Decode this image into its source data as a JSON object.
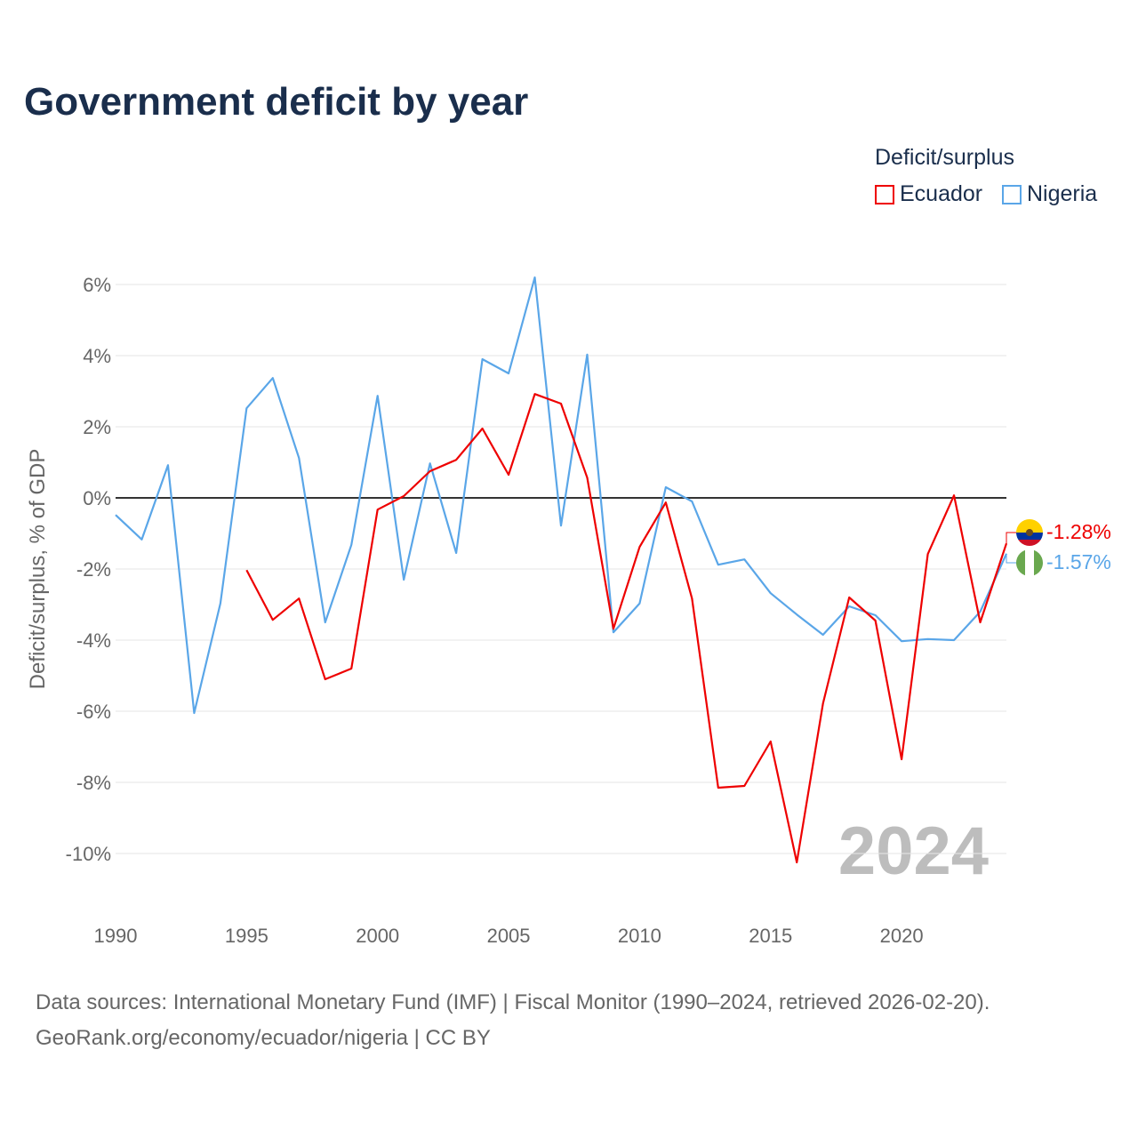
{
  "title": "Government deficit by year",
  "legend": {
    "title": "Deficit/surplus",
    "entries": [
      {
        "name": "Ecuador",
        "color": "#ee0000"
      },
      {
        "name": "Nigeria",
        "color": "#5aa6e8"
      }
    ]
  },
  "watermark_year": "2024",
  "end_labels": {
    "ecuador": "-1.28%",
    "nigeria": "-1.57%"
  },
  "footer": {
    "line1": "Data sources: International Monetary Fund (IMF) | Fiscal Monitor (1990–2024, retrieved 2026-02-20).",
    "line2": "GeoRank.org/economy/ecuador/nigeria | CC BY"
  },
  "chart_data": {
    "type": "line",
    "title": "Government deficit by year",
    "ylabel": "Deficit/surplus, % of GDP",
    "xlabel": "",
    "xlim": [
      1990,
      2024
    ],
    "ylim": [
      -11,
      7
    ],
    "xticks": [
      1990,
      1995,
      2000,
      2005,
      2010,
      2015,
      2020
    ],
    "yticks": [
      6,
      4,
      2,
      0,
      -2,
      -4,
      -6,
      -8,
      -10
    ],
    "ytick_labels": [
      "6%",
      "4%",
      "2%",
      "0%",
      "-2%",
      "-4%",
      "-6%",
      "-8%",
      "-10%"
    ],
    "grid": true,
    "legend_position": "top-right",
    "series": [
      {
        "name": "Ecuador",
        "color": "#ee0000",
        "x": [
          1995,
          1996,
          1997,
          1998,
          1999,
          2000,
          2001,
          2002,
          2003,
          2004,
          2005,
          2006,
          2007,
          2008,
          2009,
          2010,
          2011,
          2012,
          2013,
          2014,
          2015,
          2016,
          2017,
          2018,
          2019,
          2020,
          2021,
          2022,
          2023,
          2024
        ],
        "values": [
          -2.03,
          -3.43,
          -2.83,
          -5.1,
          -4.8,
          -0.33,
          0.05,
          0.75,
          1.07,
          1.95,
          0.65,
          2.92,
          2.65,
          0.57,
          -3.68,
          -1.38,
          -0.13,
          -2.83,
          -8.15,
          -8.1,
          -6.85,
          -10.25,
          -5.78,
          -2.8,
          -3.45,
          -7.35,
          -1.58,
          0.07,
          -3.5,
          -1.28
        ]
      },
      {
        "name": "Nigeria",
        "color": "#5aa6e8",
        "x": [
          1990,
          1991,
          1992,
          1993,
          1994,
          1995,
          1996,
          1997,
          1998,
          1999,
          2000,
          2001,
          2002,
          2003,
          2004,
          2005,
          2006,
          2007,
          2008,
          2009,
          2010,
          2011,
          2012,
          2013,
          2014,
          2015,
          2016,
          2017,
          2018,
          2019,
          2020,
          2021,
          2022,
          2023,
          2024
        ],
        "values": [
          -0.48,
          -1.17,
          0.92,
          -6.05,
          -2.97,
          2.52,
          3.37,
          1.12,
          -3.5,
          -1.32,
          2.87,
          -2.3,
          0.97,
          -1.55,
          3.9,
          3.5,
          6.2,
          -0.78,
          4.03,
          -3.78,
          -2.97,
          0.3,
          -0.1,
          -1.88,
          -1.73,
          -2.68,
          -3.28,
          -3.85,
          -3.05,
          -3.3,
          -4.03,
          -3.97,
          -4.0,
          -3.2,
          -1.57
        ]
      }
    ]
  }
}
